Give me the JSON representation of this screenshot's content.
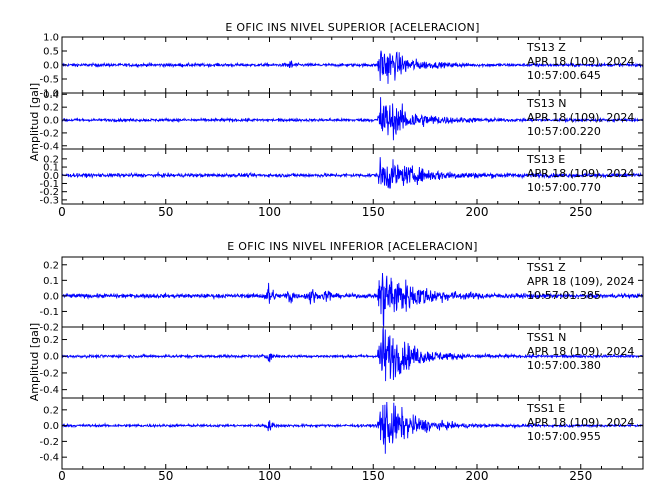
{
  "chart_data": [
    {
      "type": "line",
      "title": "E OFIC INS NIVEL SUPERIOR [ACELERACION]",
      "ylabel": "Amplitud [gal]",
      "xlim": [
        0,
        280
      ],
      "xticks": [
        "0",
        "50",
        "100",
        "150",
        "200",
        "250"
      ],
      "line_color": "#0000ff",
      "panels": [
        {
          "station": "TS13",
          "component": "Z",
          "date": "APR 18 (109), 2024",
          "time": "10:57:00.645",
          "ylim": [
            -1.0,
            1.0
          ],
          "ytick_values": [
            1.0,
            0.5,
            0.0,
            -0.5,
            -1.0
          ],
          "yticks": [
            "1.0",
            "0.5",
            "0.0",
            "-0.5",
            "-1.0"
          ],
          "noise": 0.05,
          "event_peak": 0.95,
          "event_start": 152,
          "event_decay": 10,
          "bursts": [
            {
              "t": 110,
              "a": 0.12,
              "w": 2
            }
          ]
        },
        {
          "station": "TS13",
          "component": "N",
          "date": "APR 18 (109), 2024",
          "time": "10:57:00.220",
          "ylim": [
            -0.45,
            0.42
          ],
          "ytick_values": [
            0.4,
            0.2,
            0.0,
            -0.2,
            -0.4
          ],
          "yticks": [
            "0.4",
            "0.2",
            "0.0",
            "-0.2",
            "-0.4"
          ],
          "noise": 0.02,
          "event_peak": 0.38,
          "event_start": 152,
          "event_decay": 14,
          "bursts": []
        },
        {
          "station": "TS13",
          "component": "E",
          "date": "APR 18 (109), 2024",
          "time": "10:57:00.770",
          "ylim": [
            -0.35,
            0.32
          ],
          "ytick_values": [
            0.2,
            0.1,
            0.0,
            -0.1,
            -0.2,
            -0.3
          ],
          "yticks": [
            "0.2",
            "0.1",
            "0.0",
            "-0.1",
            "-0.2",
            "-0.3"
          ],
          "noise": 0.02,
          "event_peak": 0.2,
          "event_start": 152,
          "event_decay": 18,
          "bursts": []
        }
      ]
    },
    {
      "type": "line",
      "title": "E OFIC INS NIVEL INFERIOR [ACELERACION]",
      "ylabel": "Amplitud [gal]",
      "xlim": [
        0,
        280
      ],
      "xticks": [
        "0",
        "50",
        "100",
        "150",
        "200",
        "250"
      ],
      "line_color": "#0000ff",
      "panels": [
        {
          "station": "TSS1",
          "component": "Z",
          "date": "APR 18 (109), 2024",
          "time": "10:57:01.385",
          "ylim": [
            -0.2,
            0.25
          ],
          "ytick_values": [
            0.2,
            0.1,
            0.0,
            -0.1,
            -0.2
          ],
          "yticks": [
            "0.2",
            "0.1",
            "0.0",
            "-0.1",
            "-0.2"
          ],
          "noise": 0.012,
          "event_peak": 0.22,
          "event_start": 152,
          "event_decay": 14,
          "bursts": [
            {
              "t": 100,
              "a": 0.07,
              "w": 2
            },
            {
              "t": 110,
              "a": 0.05,
              "w": 2
            },
            {
              "t": 120,
              "a": 0.05,
              "w": 2
            },
            {
              "t": 128,
              "a": 0.04,
              "w": 2
            }
          ]
        },
        {
          "station": "TSS1",
          "component": "N",
          "date": "APR 18 (109), 2024",
          "time": "10:57:00.380",
          "ylim": [
            -0.5,
            0.35
          ],
          "ytick_values": [
            0.2,
            0.0,
            -0.2,
            -0.4
          ],
          "yticks": [
            "0.2",
            "0.0",
            "-0.2",
            "-0.4"
          ],
          "noise": 0.015,
          "event_peak": 0.45,
          "event_start": 152,
          "event_decay": 12,
          "bursts": [
            {
              "t": 100,
              "a": 0.04,
              "w": 2
            }
          ]
        },
        {
          "station": "TSS1",
          "component": "E",
          "date": "APR 18 (109), 2024",
          "time": "10:57:00.955",
          "ylim": [
            -0.55,
            0.35
          ],
          "ytick_values": [
            0.2,
            0.0,
            -0.2,
            -0.4
          ],
          "yticks": [
            "0.2",
            "0.0",
            "-0.2",
            "-0.4"
          ],
          "noise": 0.015,
          "event_peak": 0.45,
          "event_start": 152,
          "event_decay": 12,
          "bursts": [
            {
              "t": 100,
              "a": 0.05,
              "w": 2
            }
          ]
        }
      ]
    }
  ]
}
